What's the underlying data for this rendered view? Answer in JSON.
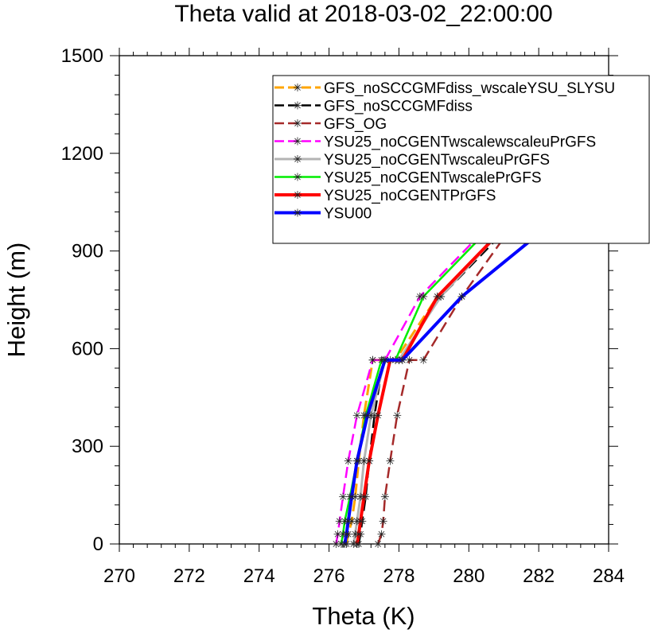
{
  "chart_data": {
    "type": "line",
    "title": "Theta valid at 2018-03-02_22:00:00",
    "xlabel": "Theta (K)",
    "ylabel": "Height (m)",
    "xlim": [
      270,
      284
    ],
    "ylim": [
      0,
      1500
    ],
    "xticks": [
      "270",
      "272",
      "274",
      "276",
      "278",
      "280",
      "282",
      "284"
    ],
    "yticks": [
      "0",
      "300",
      "600",
      "900",
      "1200",
      "1500"
    ],
    "legend_position": "top-right",
    "grid": false,
    "series": [
      {
        "name": "GFS_noSCCGMFdiss_wscaleYSU_SLYSU",
        "color": "#ffa500",
        "dash": "dash",
        "width": 3,
        "x": [
          276.5,
          276.55,
          276.65,
          276.75,
          276.85,
          277.0,
          277.25,
          277.9,
          279.1,
          281.0,
          284.0
        ],
        "y": [
          0,
          30,
          70,
          145,
          255,
          395,
          565,
          565,
          760,
          970,
          1250
        ]
      },
      {
        "name": "GFS_noSCCGMFdiss",
        "color": "#000000",
        "dash": "dash",
        "width": 2.5,
        "x": [
          276.85,
          276.9,
          276.95,
          277.05,
          277.15,
          277.3,
          277.55,
          278.0,
          279.2,
          281.1,
          284.0
        ],
        "y": [
          0,
          30,
          70,
          145,
          255,
          395,
          565,
          565,
          760,
          970,
          1260
        ]
      },
      {
        "name": "GFS_OG",
        "color": "#a52a2a",
        "dash": "dash",
        "width": 2.5,
        "x": [
          277.4,
          277.5,
          277.55,
          277.6,
          277.75,
          277.95,
          278.3,
          278.7,
          279.8,
          281.2,
          284.0
        ],
        "y": [
          0,
          30,
          70,
          145,
          255,
          395,
          565,
          565,
          760,
          970,
          1250
        ]
      },
      {
        "name": "YSU25_noCGENTwscalewscaleuPrGFS",
        "color": "#ff00ff",
        "dash": "dash",
        "width": 2.5,
        "x": [
          276.2,
          276.25,
          276.3,
          276.4,
          276.55,
          276.8,
          277.25,
          277.6,
          278.6,
          280.5,
          284.0
        ],
        "y": [
          0,
          30,
          70,
          145,
          255,
          395,
          565,
          565,
          760,
          970,
          1290
        ]
      },
      {
        "name": "YSU25_noCGENTwscaleuPrGFS",
        "color": "#b4b4b4",
        "dash": "solid",
        "width": 3,
        "x": [
          276.7,
          276.75,
          276.8,
          276.9,
          277.0,
          277.2,
          277.6,
          278.0,
          279.2,
          281.0,
          284.0
        ],
        "y": [
          0,
          30,
          70,
          145,
          255,
          395,
          565,
          565,
          760,
          970,
          1230
        ]
      },
      {
        "name": "YSU25_noCGENTwscalePrGFS",
        "color": "#00ee00",
        "dash": "solid",
        "width": 2.5,
        "x": [
          276.35,
          276.4,
          276.45,
          276.6,
          276.8,
          277.05,
          277.5,
          277.9,
          278.7,
          280.6,
          284.0
        ],
        "y": [
          0,
          30,
          70,
          145,
          255,
          395,
          565,
          565,
          760,
          970,
          1310
        ]
      },
      {
        "name": "YSU25_noCGENTPrGFS",
        "color": "#ff0000",
        "dash": "solid",
        "width": 4,
        "x": [
          276.8,
          276.85,
          276.9,
          277.0,
          277.15,
          277.4,
          277.75,
          278.1,
          279.1,
          281.0,
          284.0
        ],
        "y": [
          0,
          30,
          70,
          145,
          255,
          395,
          565,
          565,
          760,
          970,
          1250
        ]
      },
      {
        "name": "YSU00",
        "color": "#0000ff",
        "dash": "solid",
        "width": 4,
        "x": [
          276.45,
          276.5,
          276.55,
          276.65,
          276.8,
          277.1,
          277.6,
          278.1,
          279.8,
          282.2,
          284.0
        ],
        "y": [
          0,
          30,
          70,
          145,
          255,
          395,
          565,
          565,
          760,
          970,
          1135
        ]
      }
    ]
  }
}
